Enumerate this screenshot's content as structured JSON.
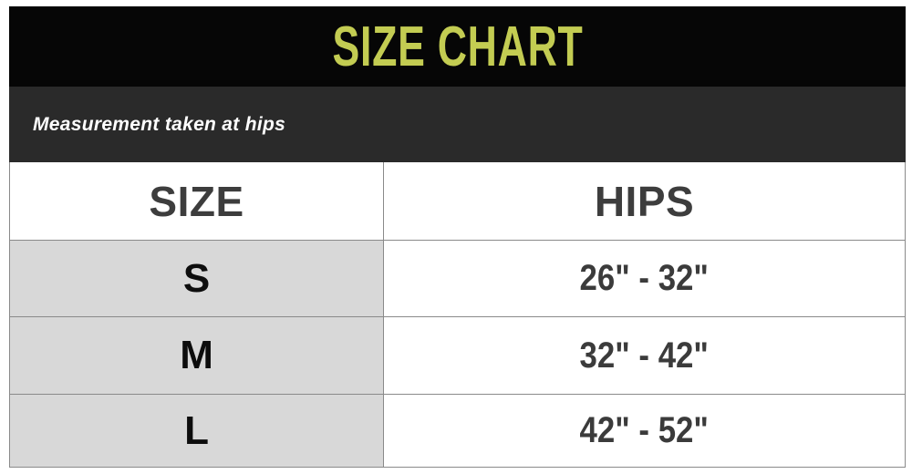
{
  "header": {
    "title": "SIZE CHART"
  },
  "subheader": {
    "note": "Measurement taken at hips"
  },
  "table": {
    "columns": [
      {
        "label": "SIZE"
      },
      {
        "label": "HIPS"
      }
    ],
    "rows": [
      {
        "size": "S",
        "hips": "26\" - 32\""
      },
      {
        "size": "M",
        "hips": "32\" - 42\""
      },
      {
        "size": "L",
        "hips": "42\" - 52\""
      }
    ]
  },
  "colors": {
    "title_accent": "#c3cc52",
    "banner_black": "#060606",
    "note_charcoal": "#2a2a2a",
    "size_cell_gray": "#d8d8d8",
    "table_border": "#8a8a8a",
    "header_text": "#3d3d3d",
    "value_text": "#3b3b3b"
  },
  "chart_data": {
    "type": "table",
    "title": "SIZE CHART",
    "note": "Measurement taken at hips",
    "columns": [
      "SIZE",
      "HIPS"
    ],
    "rows": [
      [
        "S",
        "26\" - 32\""
      ],
      [
        "M",
        "32\" - 42\""
      ],
      [
        "L",
        "42\" - 52\""
      ]
    ]
  }
}
